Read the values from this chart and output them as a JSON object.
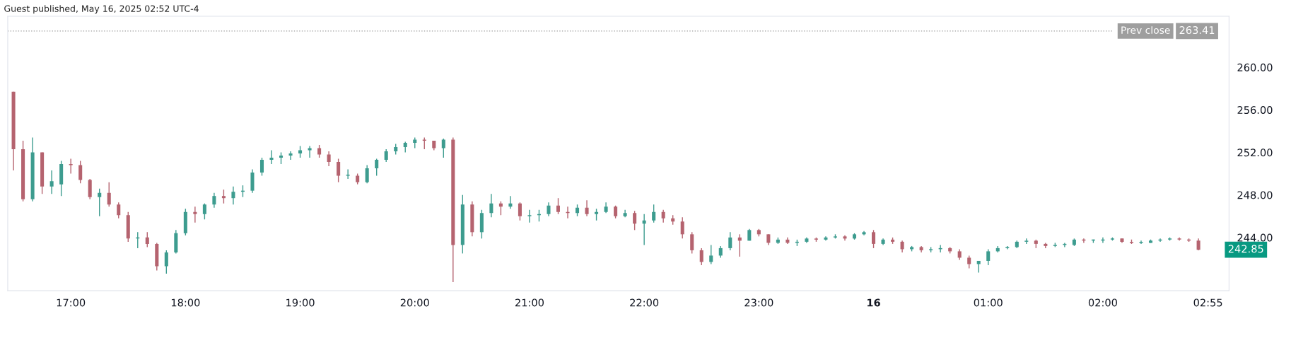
{
  "chart_data": {
    "type": "candlestick",
    "title": "Guest published, May 16, 2025 02:52 UTC-4",
    "colors": [
      "#b5636f",
      "#b5636f",
      "#3d9c8f",
      "#b5636f",
      "#3d9c8f",
      "#3d9c8f",
      "#b5636f",
      "#b5636f",
      "#b5636f",
      "#3d9c8f",
      "#b5636f",
      "#b5636f",
      "#b5636f",
      "#3d9c8f",
      "#b5636f",
      "#b5636f",
      "#3d9c8f",
      "#3d9c8f",
      "#3d9c8f",
      "#b5636f",
      "#3d9c8f",
      "#3d9c8f",
      "#b5636f",
      "#3d9c8f",
      "#3d9c8f",
      "#3d9c8f",
      "#3d9c8f",
      "#3d9c8f",
      "#3d9c8f",
      "#3d9c8f",
      "#3d9c8f",
      "#3d9c8f",
      "#b5636f",
      "#b5636f",
      "#b5636f",
      "#3d9c8f",
      "#b5636f",
      "#3d9c8f",
      "#3d9c8f",
      "#3d9c8f",
      "#3d9c8f",
      "#3d9c8f",
      "#3d9c8f",
      "#b5636f",
      "#b5636f",
      "#3d9c8f",
      "#b5636f",
      "#3d9c8f",
      "#b5636f",
      "#3d9c8f",
      "#3d9c8f",
      "#b5636f",
      "#3d9c8f",
      "#b5636f",
      "#3d9c8f",
      "#3d9c8f",
      "#3d9c8f",
      "#b5636f",
      "#b5636f",
      "#3d9c8f",
      "#b5636f",
      "#3d9c8f",
      "#3d9c8f",
      "#b5636f",
      "#3d9c8f",
      "#b5636f",
      "#3d9c8f",
      "#3d9c8f",
      "#b5636f",
      "#b5636f",
      "#b5636f",
      "#b5636f",
      "#b5636f",
      "#3d9c8f",
      "#3d9c8f",
      "#3d9c8f",
      "#b5636f",
      "#3d9c8f",
      "#b5636f",
      "#b5636f",
      "#3d9c8f",
      "#b5636f",
      "#3d9c8f",
      "#3d9c8f",
      "#b5636f",
      "#3d9c8f",
      "#3d9c8f",
      "#b5636f",
      "#3d9c8f",
      "#3d9c8f",
      "#b5636f",
      "#3d9c8f",
      "#b5636f",
      "#b5636f",
      "#3d9c8f",
      "#b5636f",
      "#3d9c8f",
      "#3d9c8f",
      "#b5636f",
      "#b5636f",
      "#b5636f",
      "#3d9c8f",
      "#3d9c8f",
      "#3d9c8f",
      "#3d9c8f",
      "#3d9c8f",
      "#3d9c8f",
      "#b5636f",
      "#b5636f",
      "#3d9c8f",
      "#3d9c8f",
      "#3d9c8f",
      "#b5636f",
      "#3d9c8f",
      "#3d9c8f",
      "#3d9c8f",
      "#b5636f",
      "#b5636f",
      "#3d9c8f",
      "#3d9c8f",
      "#3d9c8f",
      "#3d9c8f",
      "#b5636f",
      "#b5636f",
      "#b5636f"
    ],
    "x": [
      "2025-05-15T16:30",
      "2025-05-15T16:35",
      "2025-05-15T16:40",
      "2025-05-15T16:45",
      "2025-05-15T16:50",
      "2025-05-15T16:55",
      "2025-05-15T17:00",
      "2025-05-15T17:05",
      "2025-05-15T17:10",
      "2025-05-15T17:15",
      "2025-05-15T17:20",
      "2025-05-15T17:25",
      "2025-05-15T17:30",
      "2025-05-15T17:35",
      "2025-05-15T17:40",
      "2025-05-15T17:45",
      "2025-05-15T17:50",
      "2025-05-15T17:55",
      "2025-05-15T18:00",
      "2025-05-15T18:05",
      "2025-05-15T18:10",
      "2025-05-15T18:15",
      "2025-05-15T18:20",
      "2025-05-15T18:25",
      "2025-05-15T18:30",
      "2025-05-15T18:35",
      "2025-05-15T18:40",
      "2025-05-15T18:45",
      "2025-05-15T18:50",
      "2025-05-15T18:55",
      "2025-05-15T19:00",
      "2025-05-15T19:05",
      "2025-05-15T19:10",
      "2025-05-15T19:15",
      "2025-05-15T19:20",
      "2025-05-15T19:25",
      "2025-05-15T19:30",
      "2025-05-15T19:35",
      "2025-05-15T19:40",
      "2025-05-15T19:45",
      "2025-05-15T19:50",
      "2025-05-15T19:55",
      "2025-05-15T20:00",
      "2025-05-15T20:05",
      "2025-05-15T20:10",
      "2025-05-15T20:15",
      "2025-05-15T20:20",
      "2025-05-15T20:25",
      "2025-05-15T20:30",
      "2025-05-15T20:35",
      "2025-05-15T20:40",
      "2025-05-15T20:45",
      "2025-05-15T20:50",
      "2025-05-15T20:55",
      "2025-05-15T21:00",
      "2025-05-15T21:05",
      "2025-05-15T21:10",
      "2025-05-15T21:15",
      "2025-05-15T21:20",
      "2025-05-15T21:25",
      "2025-05-15T21:30",
      "2025-05-15T21:35",
      "2025-05-15T21:40",
      "2025-05-15T21:45",
      "2025-05-15T21:50",
      "2025-05-15T21:55",
      "2025-05-15T22:00",
      "2025-05-15T22:05",
      "2025-05-15T22:10",
      "2025-05-15T22:15",
      "2025-05-15T22:20",
      "2025-05-15T22:25",
      "2025-05-15T22:30",
      "2025-05-15T22:35",
      "2025-05-15T22:40",
      "2025-05-15T22:45",
      "2025-05-15T22:50",
      "2025-05-15T22:55",
      "2025-05-15T23:00",
      "2025-05-15T23:05",
      "2025-05-15T23:10",
      "2025-05-15T23:15",
      "2025-05-15T23:20",
      "2025-05-15T23:25",
      "2025-05-15T23:30",
      "2025-05-15T23:35",
      "2025-05-15T23:40",
      "2025-05-15T23:45",
      "2025-05-15T23:50",
      "2025-05-15T23:55",
      "2025-05-16T00:00",
      "2025-05-16T00:05",
      "2025-05-16T00:10",
      "2025-05-16T00:15",
      "2025-05-16T00:20",
      "2025-05-16T00:25",
      "2025-05-16T00:30",
      "2025-05-16T00:35",
      "2025-05-16T00:40",
      "2025-05-16T00:45",
      "2025-05-16T00:50",
      "2025-05-16T00:55",
      "2025-05-16T01:00",
      "2025-05-16T01:05",
      "2025-05-16T01:10",
      "2025-05-16T01:15",
      "2025-05-16T01:20",
      "2025-05-16T01:25",
      "2025-05-16T01:30",
      "2025-05-16T01:35",
      "2025-05-16T01:40",
      "2025-05-16T01:45",
      "2025-05-16T01:50",
      "2025-05-16T01:55",
      "2025-05-16T02:00",
      "2025-05-16T02:05",
      "2025-05-16T02:10",
      "2025-05-16T02:15",
      "2025-05-16T02:20",
      "2025-05-16T02:25",
      "2025-05-16T02:30",
      "2025-05-16T02:35",
      "2025-05-16T02:40",
      "2025-05-16T02:45",
      "2025-05-16T02:50"
    ],
    "ohlc": [
      [
        257.7,
        257.7,
        250.3,
        252.3
      ],
      [
        252.3,
        253.1,
        247.4,
        247.6
      ],
      [
        247.6,
        253.4,
        247.4,
        252.0
      ],
      [
        252.0,
        252.0,
        248.1,
        248.8
      ],
      [
        248.8,
        250.3,
        248.1,
        249.3
      ],
      [
        249.0,
        251.2,
        247.9,
        250.9
      ],
      [
        250.9,
        251.4,
        250.0,
        250.8
      ],
      [
        250.8,
        251.2,
        249.1,
        249.4
      ],
      [
        249.4,
        249.5,
        247.6,
        247.8
      ],
      [
        247.8,
        248.6,
        246.0,
        248.2
      ],
      [
        248.2,
        249.2,
        246.9,
        247.1
      ],
      [
        247.1,
        247.3,
        245.8,
        246.1
      ],
      [
        246.1,
        246.4,
        243.6,
        243.9
      ],
      [
        243.9,
        244.5,
        243.0,
        244.0
      ],
      [
        244.0,
        244.5,
        243.1,
        243.4
      ],
      [
        243.4,
        243.5,
        240.9,
        241.3
      ],
      [
        241.3,
        242.8,
        240.6,
        242.6
      ],
      [
        242.6,
        244.7,
        242.5,
        244.4
      ],
      [
        244.4,
        246.7,
        244.2,
        246.4
      ],
      [
        246.4,
        246.9,
        245.4,
        246.2
      ],
      [
        246.2,
        247.2,
        245.7,
        247.1
      ],
      [
        247.1,
        248.2,
        246.8,
        247.9
      ],
      [
        247.9,
        248.5,
        247.2,
        247.7
      ],
      [
        247.7,
        248.8,
        247.1,
        248.3
      ],
      [
        248.3,
        248.9,
        247.8,
        248.4
      ],
      [
        248.4,
        250.4,
        248.2,
        250.1
      ],
      [
        250.1,
        251.5,
        249.8,
        251.3
      ],
      [
        251.3,
        252.2,
        250.9,
        251.5
      ],
      [
        251.5,
        252.0,
        250.9,
        251.7
      ],
      [
        251.7,
        252.1,
        251.3,
        251.9
      ],
      [
        251.9,
        252.6,
        251.5,
        252.2
      ],
      [
        252.2,
        252.6,
        251.5,
        252.4
      ],
      [
        252.4,
        252.7,
        251.5,
        251.8
      ],
      [
        251.8,
        252.1,
        250.7,
        251.1
      ],
      [
        251.1,
        251.4,
        249.2,
        249.8
      ],
      [
        249.8,
        250.4,
        249.5,
        249.9
      ],
      [
        249.8,
        250.0,
        249.0,
        249.2
      ],
      [
        249.2,
        250.8,
        249.1,
        250.5
      ],
      [
        250.5,
        251.4,
        249.8,
        251.3
      ],
      [
        251.3,
        252.3,
        251.1,
        252.1
      ],
      [
        252.1,
        252.8,
        251.8,
        252.5
      ],
      [
        252.5,
        253.0,
        252.0,
        252.9
      ],
      [
        252.9,
        253.4,
        252.4,
        253.2
      ],
      [
        253.2,
        253.4,
        252.3,
        253.1
      ],
      [
        253.1,
        253.1,
        252.2,
        252.4
      ],
      [
        252.4,
        253.3,
        251.5,
        253.2
      ],
      [
        253.2,
        253.4,
        239.8,
        243.3
      ],
      [
        243.3,
        248.0,
        242.5,
        247.1
      ],
      [
        247.1,
        247.4,
        244.1,
        244.5
      ],
      [
        244.5,
        246.6,
        243.9,
        246.3
      ],
      [
        246.3,
        248.1,
        245.9,
        247.2
      ],
      [
        247.2,
        247.4,
        246.1,
        246.9
      ],
      [
        246.9,
        247.9,
        246.7,
        247.2
      ],
      [
        247.2,
        247.3,
        245.6,
        246.0
      ],
      [
        246.0,
        246.6,
        245.4,
        246.1
      ],
      [
        246.1,
        246.6,
        245.5,
        246.2
      ],
      [
        246.2,
        247.3,
        246.0,
        247.0
      ],
      [
        247.0,
        247.7,
        246.2,
        246.4
      ],
      [
        246.4,
        246.9,
        245.8,
        246.3
      ],
      [
        246.3,
        247.1,
        246.0,
        246.8
      ],
      [
        246.8,
        247.5,
        246.0,
        246.2
      ],
      [
        246.2,
        246.7,
        245.6,
        246.4
      ],
      [
        246.4,
        247.3,
        246.3,
        246.9
      ],
      [
        246.9,
        247.0,
        245.8,
        246.0
      ],
      [
        246.0,
        246.6,
        245.9,
        246.3
      ],
      [
        246.3,
        246.5,
        244.7,
        245.3
      ],
      [
        245.3,
        246.2,
        243.3,
        245.6
      ],
      [
        245.6,
        247.1,
        245.4,
        246.4
      ],
      [
        246.4,
        246.6,
        245.4,
        245.8
      ],
      [
        245.8,
        246.1,
        245.2,
        245.5
      ],
      [
        245.5,
        245.9,
        243.9,
        244.3
      ],
      [
        244.3,
        244.5,
        242.5,
        242.8
      ],
      [
        242.8,
        243.0,
        241.4,
        241.7
      ],
      [
        241.7,
        243.3,
        241.5,
        242.3
      ],
      [
        242.3,
        243.2,
        242.1,
        243.0
      ],
      [
        243.0,
        244.5,
        242.8,
        244.0
      ],
      [
        244.0,
        244.3,
        242.2,
        243.7
      ],
      [
        243.7,
        244.8,
        243.7,
        244.7
      ],
      [
        244.7,
        244.8,
        244.1,
        244.3
      ],
      [
        244.3,
        244.3,
        243.3,
        243.5
      ],
      [
        243.5,
        244.0,
        243.4,
        243.8
      ],
      [
        243.8,
        244.0,
        243.4,
        243.5
      ],
      [
        243.5,
        243.8,
        243.2,
        243.6
      ],
      [
        243.6,
        244.0,
        243.5,
        243.9
      ],
      [
        243.9,
        244.0,
        243.6,
        243.8
      ],
      [
        243.8,
        244.1,
        243.7,
        244.0
      ],
      [
        244.0,
        244.3,
        243.9,
        244.1
      ],
      [
        244.1,
        244.2,
        243.7,
        243.9
      ],
      [
        243.9,
        244.4,
        243.8,
        244.3
      ],
      [
        244.3,
        244.6,
        244.2,
        244.5
      ],
      [
        244.5,
        244.7,
        243.0,
        243.4
      ],
      [
        243.4,
        243.9,
        243.3,
        243.8
      ],
      [
        243.8,
        244.0,
        243.4,
        243.6
      ],
      [
        243.6,
        243.7,
        242.6,
        242.9
      ],
      [
        242.9,
        243.2,
        242.7,
        243.1
      ],
      [
        243.1,
        243.2,
        242.6,
        242.8
      ],
      [
        242.8,
        243.1,
        242.6,
        242.9
      ],
      [
        242.9,
        243.3,
        242.6,
        243.0
      ],
      [
        243.0,
        243.1,
        242.5,
        242.7
      ],
      [
        242.7,
        242.9,
        241.9,
        242.1
      ],
      [
        242.1,
        242.3,
        241.1,
        241.5
      ],
      [
        241.5,
        241.8,
        240.7,
        241.8
      ],
      [
        241.8,
        242.9,
        241.4,
        242.7
      ],
      [
        242.7,
        243.2,
        242.6,
        243.0
      ],
      [
        243.0,
        243.2,
        242.9,
        243.1
      ],
      [
        243.1,
        243.7,
        243.0,
        243.6
      ],
      [
        243.6,
        243.9,
        243.4,
        243.7
      ],
      [
        243.7,
        243.8,
        243.0,
        243.4
      ],
      [
        243.4,
        243.5,
        243.0,
        243.2
      ],
      [
        243.2,
        243.5,
        243.1,
        243.3
      ],
      [
        243.3,
        243.5,
        243.1,
        243.4
      ],
      [
        243.3,
        243.9,
        243.2,
        243.8
      ],
      [
        243.8,
        243.9,
        243.5,
        243.7
      ],
      [
        243.7,
        243.8,
        243.5,
        243.8
      ],
      [
        243.7,
        244.0,
        243.5,
        243.8
      ],
      [
        243.8,
        244.0,
        243.7,
        243.9
      ],
      [
        243.9,
        243.9,
        243.5,
        243.6
      ],
      [
        243.6,
        243.8,
        243.4,
        243.5
      ],
      [
        243.5,
        243.7,
        243.4,
        243.6
      ],
      [
        243.5,
        243.8,
        243.5,
        243.7
      ],
      [
        243.7,
        243.9,
        243.6,
        243.8
      ],
      [
        243.8,
        244.0,
        243.7,
        243.9
      ],
      [
        243.9,
        244.0,
        243.7,
        243.8
      ],
      [
        243.8,
        243.9,
        243.6,
        243.7
      ],
      [
        243.7,
        243.9,
        242.8,
        242.85
      ]
    ],
    "xlim": [
      "2025-05-15T16:27",
      "2025-05-16T03:06"
    ],
    "ylim": [
      239.0,
      264.8
    ],
    "xticks": [
      {
        "value": "2025-05-15T17:00",
        "label": "17:00"
      },
      {
        "value": "2025-05-15T18:00",
        "label": "18:00"
      },
      {
        "value": "2025-05-15T19:00",
        "label": "19:00"
      },
      {
        "value": "2025-05-15T20:00",
        "label": "20:00"
      },
      {
        "value": "2025-05-15T21:00",
        "label": "21:00"
      },
      {
        "value": "2025-05-15T22:00",
        "label": "22:00"
      },
      {
        "value": "2025-05-15T23:00",
        "label": "23:00"
      },
      {
        "value": "2025-05-16T00:00",
        "label": "16"
      },
      {
        "value": "2025-05-16T01:00",
        "label": "01:00"
      },
      {
        "value": "2025-05-16T02:00",
        "label": "02:00"
      },
      {
        "value": "2025-05-16T02:55",
        "label": "02:55"
      }
    ],
    "yticks": [
      {
        "value": 244,
        "label": "244.00"
      },
      {
        "value": 248,
        "label": "248.00"
      },
      {
        "value": 252,
        "label": "252.00"
      },
      {
        "value": 256,
        "label": "256.00"
      },
      {
        "value": 260,
        "label": "260.00"
      }
    ],
    "ref_lines": [
      {
        "axis": "y",
        "value": 263.41,
        "label": "Prev close",
        "color": "#9e9e9e",
        "line_style": "dotted"
      }
    ],
    "annotations": [
      "263.41",
      {
        "text": "242.85",
        "x": "2025-05-16T02:50",
        "y": 242.85
      }
    ],
    "grid": false,
    "legend": false
  }
}
